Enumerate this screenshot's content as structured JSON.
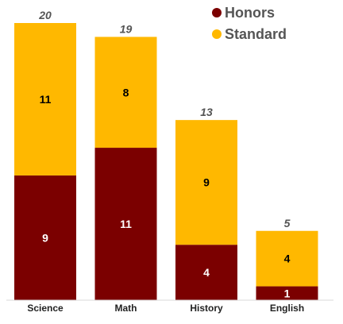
{
  "chart_data": {
    "type": "bar",
    "stacked": true,
    "categories": [
      "Science",
      "Math",
      "History",
      "English"
    ],
    "series": [
      {
        "name": "Honors",
        "values": [
          9,
          11,
          4,
          1
        ],
        "color": "#7b0000",
        "label_color": "#ffffff"
      },
      {
        "name": "Standard",
        "values": [
          11,
          8,
          9,
          4
        ],
        "color": "#ffb800",
        "label_color": "#000000"
      }
    ],
    "totals": [
      20,
      19,
      13,
      5
    ],
    "ylim": [
      0,
      20
    ],
    "legend_position": "top-right",
    "grid": false,
    "axis_color": "#d9d9d9"
  }
}
